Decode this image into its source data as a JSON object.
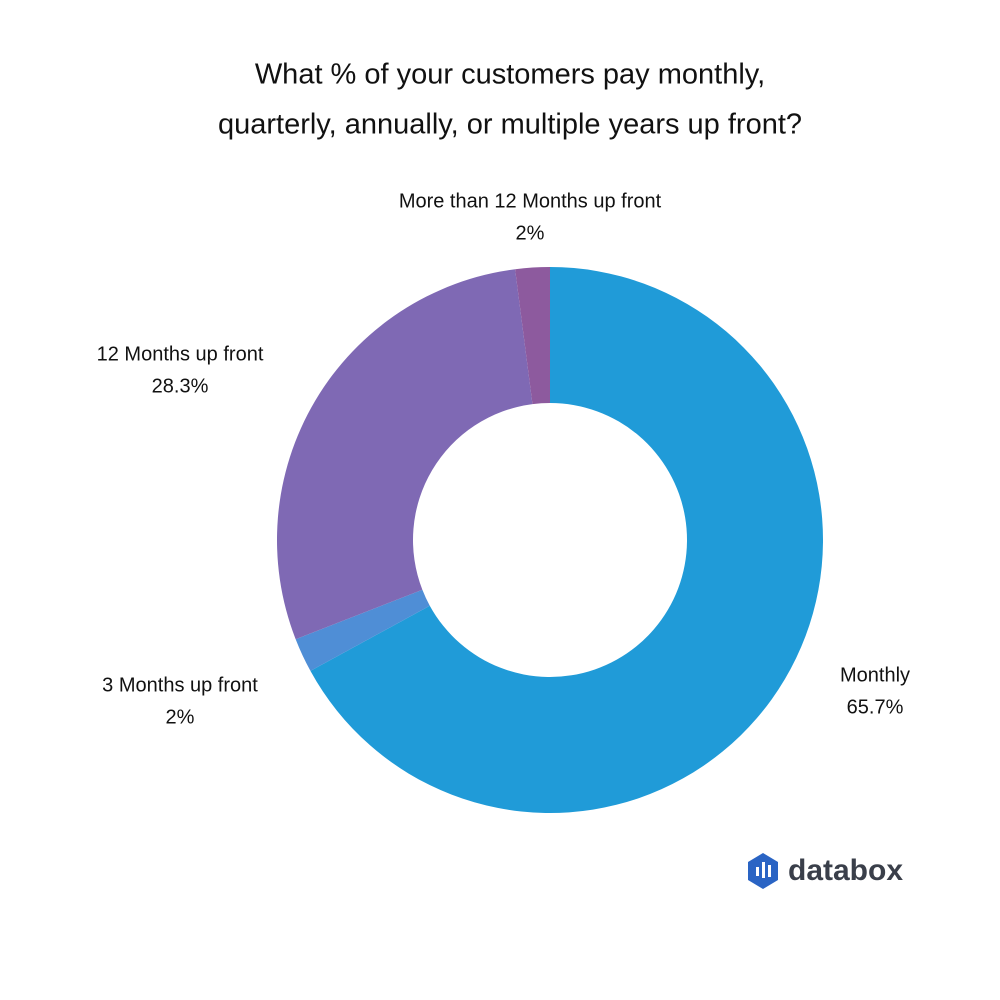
{
  "chart_data": {
    "type": "donut",
    "title": [
      "What % of your customers pay monthly,",
      "quarterly, annually, or multiple years up front?"
    ],
    "categories": [
      "Monthly",
      "3 Months up front",
      "12 Months up front",
      "More than 12 Months up front"
    ],
    "values": [
      65.7,
      2,
      28.3,
      2
    ],
    "value_labels": [
      "65.7%",
      "2%",
      "28.3%",
      "2%"
    ],
    "colors": [
      "#209bd8",
      "#4f8ed6",
      "#7f69b4",
      "#8d5a9e"
    ]
  },
  "logo": "databox"
}
